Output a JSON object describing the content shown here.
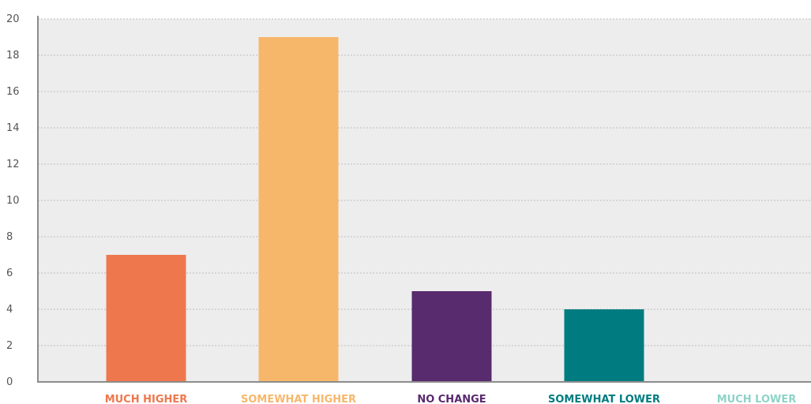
{
  "chart_data": {
    "type": "bar",
    "categories": [
      "MUCH HIGHER",
      "SOMEWHAT HIGHER",
      "NO CHANGE",
      "SOMEWHAT LOWER",
      "MUCH LOWER"
    ],
    "values": [
      7,
      19,
      5,
      4,
      0
    ],
    "colors": [
      "#ee774d",
      "#f7b76b",
      "#582a6e",
      "#007c80",
      "#8ed3c8"
    ],
    "ylim": [
      0,
      20
    ],
    "yticks": [
      "0",
      "2",
      "4",
      "6",
      "8",
      "10",
      "12",
      "14",
      "16",
      "18",
      "20"
    ],
    "title": "",
    "xlabel": "",
    "ylabel": "",
    "grid": true,
    "background": "#ededed"
  }
}
